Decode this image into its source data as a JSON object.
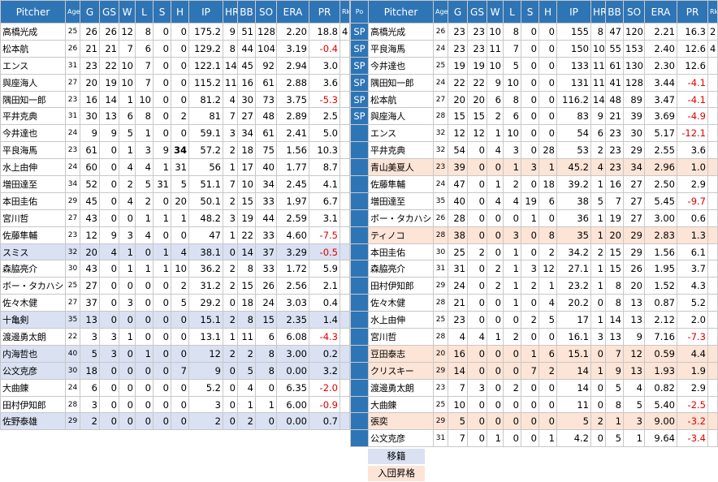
{
  "colors": {
    "header": "#2e75b6",
    "moved": "#d9e1f2",
    "joined": "#fce4d6",
    "negative": "#e00000"
  },
  "left": {
    "header": [
      "Pitcher",
      "Age",
      "G",
      "GS",
      "W",
      "L",
      "S",
      "H",
      "IP",
      "HR",
      "BB",
      "SO",
      "ERA",
      "PR",
      "Rk"
    ],
    "rows": [
      {
        "cells": [
          "高橋光成",
          "25",
          "26",
          "26",
          "12",
          "8",
          "0",
          "0",
          "175.2",
          "9",
          "51",
          "128",
          "2.20",
          "18.8",
          "4"
        ]
      },
      {
        "cells": [
          "松本航",
          "26",
          "21",
          "21",
          "7",
          "6",
          "0",
          "0",
          "129.2",
          "8",
          "44",
          "104",
          "3.19",
          "-0.4",
          null
        ]
      },
      {
        "cells": [
          "エンス",
          "31",
          "23",
          "22",
          "10",
          "7",
          "0",
          "0",
          "122.1",
          "14",
          "45",
          "92",
          "2.94",
          "3.0",
          null
        ]
      },
      {
        "cells": [
          "與座海人",
          "27",
          "20",
          "19",
          "10",
          "7",
          "0",
          "0",
          "115.2",
          "11",
          "16",
          "61",
          "2.88",
          "3.6",
          null
        ]
      },
      {
        "cells": [
          "隅田知一郎",
          "23",
          "16",
          "14",
          "1",
          "10",
          "0",
          "0",
          "81.2",
          "4",
          "30",
          "73",
          "3.75",
          "-5.3",
          null
        ]
      },
      {
        "cells": [
          "平井克典",
          "31",
          "30",
          "13",
          "6",
          "8",
          "0",
          "2",
          "81",
          "7",
          "27",
          "48",
          "2.89",
          "2.5",
          null
        ]
      },
      {
        "cells": [
          "今井達也",
          "24",
          "9",
          "9",
          "5",
          "1",
          "0",
          "0",
          "59.1",
          "3",
          "34",
          "61",
          "2.41",
          "5.0",
          null
        ]
      },
      {
        "cells": [
          "平良海馬",
          "23",
          "61",
          "0",
          "1",
          "3",
          "9",
          "34",
          "57.2",
          "2",
          "18",
          "75",
          "1.56",
          "10.3",
          null
        ],
        "bold": 7
      },
      {
        "cells": [
          "水上由伸",
          "24",
          "60",
          "0",
          "4",
          "4",
          "1",
          "31",
          "56",
          "1",
          "17",
          "40",
          "1.77",
          "8.7",
          null
        ]
      },
      {
        "cells": [
          "増田達至",
          "34",
          "52",
          "0",
          "2",
          "5",
          "31",
          "5",
          "51.1",
          "7",
          "10",
          "34",
          "2.45",
          "4.1",
          null
        ]
      },
      {
        "cells": [
          "本田圭佑",
          "29",
          "45",
          "0",
          "4",
          "2",
          "0",
          "20",
          "50.1",
          "2",
          "15",
          "33",
          "1.97",
          "6.7",
          null
        ]
      },
      {
        "cells": [
          "宮川哲",
          "27",
          "43",
          "0",
          "0",
          "1",
          "1",
          "1",
          "48.2",
          "3",
          "19",
          "44",
          "2.59",
          "3.1",
          null
        ]
      },
      {
        "cells": [
          "佐藤隼輔",
          "23",
          "12",
          "9",
          "3",
          "4",
          "0",
          "0",
          "47",
          "1",
          "22",
          "33",
          "4.60",
          "-7.5",
          null
        ]
      },
      {
        "cells": [
          "スミス",
          "32",
          "20",
          "4",
          "1",
          "0",
          "1",
          "4",
          "38.1",
          "0",
          "14",
          "37",
          "3.29",
          "-0.5",
          null
        ],
        "fill": "moved"
      },
      {
        "cells": [
          "森脇亮介",
          "30",
          "43",
          "0",
          "1",
          "1",
          "1",
          "10",
          "36.2",
          "2",
          "8",
          "33",
          "1.72",
          "5.9",
          null
        ]
      },
      {
        "cells": [
          "ボー・タカハシ",
          "25",
          "27",
          "0",
          "0",
          "0",
          "0",
          "2",
          "31.2",
          "2",
          "15",
          "26",
          "2.56",
          "2.1",
          null
        ]
      },
      {
        "cells": [
          "佐々木健",
          "27",
          "37",
          "0",
          "3",
          "0",
          "0",
          "5",
          "29.2",
          "0",
          "18",
          "24",
          "3.03",
          "0.4",
          null
        ]
      },
      {
        "cells": [
          "十亀剣",
          "35",
          "13",
          "0",
          "0",
          "0",
          "0",
          "0",
          "15.1",
          "2",
          "8",
          "15",
          "2.35",
          "1.4",
          null
        ],
        "fill": "moved"
      },
      {
        "cells": [
          "渡邊勇太朗",
          "22",
          "3",
          "3",
          "1",
          "0",
          "0",
          "0",
          "13.1",
          "1",
          "11",
          "6",
          "6.08",
          "-4.3",
          null
        ]
      },
      {
        "cells": [
          "内海哲也",
          "40",
          "5",
          "3",
          "0",
          "1",
          "0",
          "0",
          "12",
          "2",
          "2",
          "8",
          "3.00",
          "0.2",
          null
        ],
        "fill": "moved"
      },
      {
        "cells": [
          "公文克彦",
          "30",
          "18",
          "0",
          "0",
          "0",
          "0",
          "7",
          "9",
          "0",
          "5",
          "8",
          "0.00",
          "3.2",
          null
        ],
        "fill": "moved"
      },
      {
        "cells": [
          "大曲錬",
          "24",
          "6",
          "0",
          "0",
          "0",
          "0",
          "0",
          "5.2",
          "0",
          "4",
          "0",
          "6.35",
          "-2.0",
          null
        ]
      },
      {
        "cells": [
          "田村伊知郎",
          "28",
          "3",
          "0",
          "0",
          "0",
          "0",
          "0",
          "3",
          "0",
          "1",
          "1",
          "6.00",
          "-0.9",
          null
        ]
      },
      {
        "cells": [
          "佐野泰雄",
          "29",
          "2",
          "0",
          "0",
          "0",
          "0",
          "0",
          "2",
          "0",
          "2",
          "0",
          "0.00",
          "0.7",
          null
        ],
        "fill": "moved"
      }
    ]
  },
  "right": {
    "header": [
      "Po",
      "Pitcher",
      "Age",
      "G",
      "GS",
      "W",
      "L",
      "S",
      "H",
      "IP",
      "HR",
      "BB",
      "SO",
      "ERA",
      "PR",
      "Rk"
    ],
    "rows": [
      {
        "cells": [
          "SP",
          "高橋光成",
          "26",
          "23",
          "23",
          "10",
          "8",
          "0",
          "0",
          "155",
          "8",
          "47",
          "120",
          "2.21",
          "16.3",
          "2"
        ]
      },
      {
        "cells": [
          "SP",
          "平良海馬",
          "24",
          "23",
          "23",
          "11",
          "7",
          "0",
          "0",
          "150",
          "10",
          "55",
          "153",
          "2.40",
          "12.6",
          "4"
        ]
      },
      {
        "cells": [
          "SP",
          "今井達也",
          "25",
          "19",
          "19",
          "10",
          "5",
          "0",
          "0",
          "133",
          "11",
          "61",
          "130",
          "2.30",
          "12.6",
          null
        ]
      },
      {
        "cells": [
          "SP",
          "隅田知一郎",
          "24",
          "22",
          "22",
          "9",
          "10",
          "0",
          "0",
          "131",
          "11",
          "41",
          "128",
          "3.44",
          "-4.1",
          null
        ]
      },
      {
        "cells": [
          "SP",
          "松本航",
          "27",
          "20",
          "20",
          "6",
          "8",
          "0",
          "0",
          "116.2",
          "14",
          "48",
          "89",
          "3.47",
          "-4.1",
          null
        ]
      },
      {
        "cells": [
          "SP",
          "與座海人",
          "28",
          "15",
          "15",
          "2",
          "6",
          "0",
          "0",
          "83",
          "9",
          "21",
          "39",
          "3.69",
          "-4.9",
          null
        ]
      },
      {
        "cells": [
          null,
          "エンス",
          "32",
          "12",
          "12",
          "1",
          "10",
          "0",
          "0",
          "54",
          "6",
          "23",
          "30",
          "5.17",
          "-12.1",
          null
        ]
      },
      {
        "cells": [
          null,
          "平井克典",
          "32",
          "54",
          "0",
          "4",
          "3",
          "0",
          "28",
          "53",
          "2",
          "23",
          "29",
          "2.55",
          "3.6",
          null
        ]
      },
      {
        "cells": [
          null,
          "青山美夏人",
          "23",
          "39",
          "0",
          "0",
          "1",
          "3",
          "1",
          "45.2",
          "4",
          "23",
          "34",
          "2.96",
          "1.0",
          null
        ],
        "fill": "joined"
      },
      {
        "cells": [
          null,
          "佐藤隼輔",
          "24",
          "47",
          "0",
          "1",
          "2",
          "0",
          "18",
          "39.2",
          "1",
          "16",
          "27",
          "2.50",
          "2.9",
          null
        ]
      },
      {
        "cells": [
          null,
          "増田達至",
          "35",
          "40",
          "0",
          "4",
          "4",
          "19",
          "6",
          "38",
          "5",
          "7",
          "27",
          "5.45",
          "-9.7",
          null
        ]
      },
      {
        "cells": [
          null,
          "ボー・タカハシ",
          "26",
          "28",
          "0",
          "0",
          "0",
          "1",
          "0",
          "36",
          "1",
          "19",
          "27",
          "3.00",
          "0.6",
          null
        ]
      },
      {
        "cells": [
          null,
          "ティノコ",
          "28",
          "38",
          "0",
          "0",
          "3",
          "0",
          "8",
          "35",
          "1",
          "20",
          "29",
          "2.83",
          "1.3",
          null
        ],
        "fill": "joined"
      },
      {
        "cells": [
          null,
          "本田圭佑",
          "30",
          "25",
          "2",
          "0",
          "1",
          "0",
          "2",
          "34.2",
          "2",
          "15",
          "29",
          "1.56",
          "6.1",
          null
        ]
      },
      {
        "cells": [
          null,
          "森脇亮介",
          "31",
          "31",
          "0",
          "2",
          "1",
          "3",
          "12",
          "27.1",
          "1",
          "15",
          "26",
          "1.95",
          "3.7",
          null
        ]
      },
      {
        "cells": [
          null,
          "田村伊知郎",
          "29",
          "24",
          "0",
          "2",
          "1",
          "2",
          "1",
          "23.2",
          "1",
          "8",
          "20",
          "1.52",
          "4.3",
          null
        ]
      },
      {
        "cells": [
          null,
          "佐々木健",
          "28",
          "21",
          "0",
          "0",
          "1",
          "0",
          "4",
          "20.2",
          "0",
          "8",
          "13",
          "0.87",
          "5.2",
          null
        ]
      },
      {
        "cells": [
          null,
          "水上由伸",
          "25",
          "23",
          "0",
          "0",
          "0",
          "2",
          "5",
          "17",
          "1",
          "14",
          "13",
          "2.12",
          "2.0",
          null
        ]
      },
      {
        "cells": [
          null,
          "宮川哲",
          "28",
          "4",
          "4",
          "1",
          "2",
          "0",
          "0",
          "16.1",
          "3",
          "13",
          "9",
          "7.16",
          "-7.3",
          null
        ]
      },
      {
        "cells": [
          null,
          "豆田泰志",
          "20",
          "16",
          "0",
          "0",
          "0",
          "1",
          "6",
          "15.1",
          "0",
          "7",
          "12",
          "0.59",
          "4.4",
          null
        ],
        "fill": "joined"
      },
      {
        "cells": [
          null,
          "クリスキー",
          "29",
          "14",
          "0",
          "0",
          "0",
          "7",
          "2",
          "14",
          "1",
          "9",
          "13",
          "1.93",
          "1.9",
          null
        ],
        "fill": "joined"
      },
      {
        "cells": [
          null,
          "渡邊勇太朗",
          "23",
          "7",
          "3",
          "0",
          "2",
          "0",
          "0",
          "14",
          "0",
          "5",
          "4",
          "0.82",
          "2.9",
          null
        ]
      },
      {
        "cells": [
          null,
          "大曲錬",
          "25",
          "10",
          "0",
          "0",
          "0",
          "0",
          "0",
          "11",
          "0",
          "8",
          "5",
          "5.40",
          "-2.5",
          null
        ]
      },
      {
        "cells": [
          null,
          "張奕",
          "29",
          "5",
          "0",
          "0",
          "0",
          "0",
          "0",
          "5",
          "2",
          "1",
          "3",
          "9.00",
          "-3.2",
          null
        ],
        "fill": "joined"
      },
      {
        "cells": [
          null,
          "公文克彦",
          "31",
          "7",
          "0",
          "1",
          "0",
          "0",
          "1",
          "4.2",
          "0",
          "5",
          "1",
          "9.64",
          "-3.4",
          null
        ]
      }
    ]
  },
  "legend": [
    {
      "label": "移籍",
      "fill": "moved"
    },
    {
      "label": "入団昇格",
      "fill": "joined"
    }
  ]
}
